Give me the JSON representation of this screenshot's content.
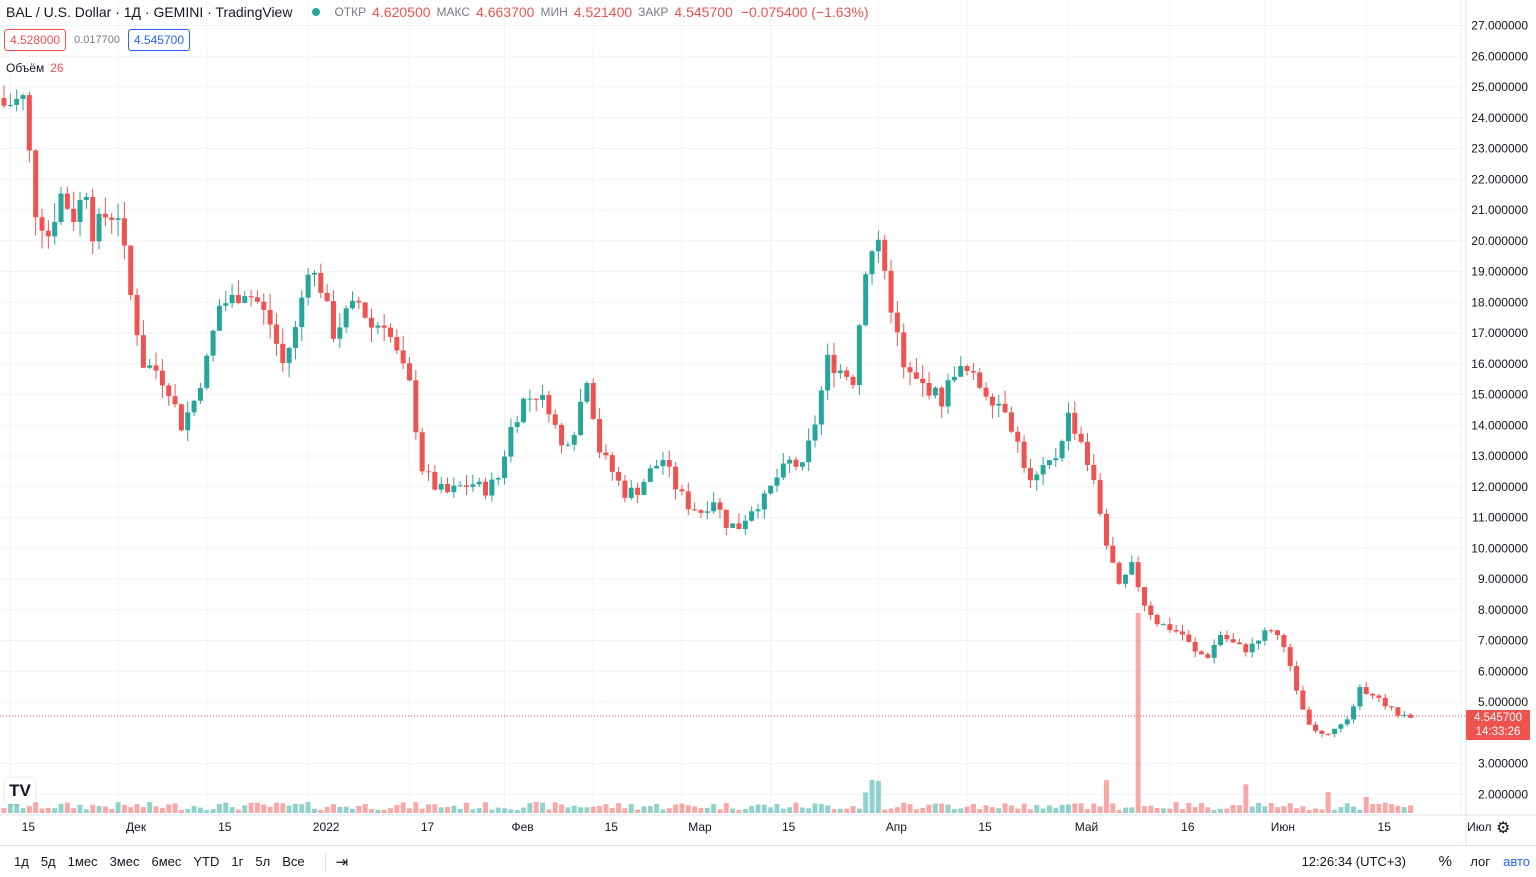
{
  "header": {
    "symbol": "BAL / U.S. Dollar · 1Д · GEMINI · TradingView",
    "open_label": "ОТКР",
    "open": "4.620500",
    "high_label": "МАКС",
    "high": "4.663700",
    "low_label": "МИН",
    "low": "4.521400",
    "close_label": "ЗАКР",
    "close": "4.545700",
    "change": "−0.075400 (−1.63%)"
  },
  "order_boxes": {
    "sell": "4.528000",
    "spread": "0.017700",
    "buy": "4.545700"
  },
  "volume_legend": {
    "label": "Объём",
    "value": "26"
  },
  "last_price": {
    "price": "4.545700",
    "countdown": "14:33:26"
  },
  "colors": {
    "up": "#26a69a",
    "down": "#ef5350",
    "grid": "#f0f3fa",
    "axis_text": "#131722"
  },
  "bottom_bar": {
    "ranges": [
      "1д",
      "5д",
      "1мес",
      "3мес",
      "6мес",
      "YTD",
      "1г",
      "5л",
      "Все"
    ],
    "clock": "12:26:34 (UTC+3)",
    "percent": "%",
    "log": "лог",
    "auto": "авто"
  },
  "icons": {
    "calendar": "calendar-goto-icon",
    "settings": "gear-icon",
    "logo": "tradingview-logo-icon"
  },
  "chart_data": {
    "type": "candlestick",
    "y_ticks": [
      "27.000000",
      "26.000000",
      "25.000000",
      "24.000000",
      "23.000000",
      "22.000000",
      "21.000000",
      "20.000000",
      "19.000000",
      "18.000000",
      "17.000000",
      "16.000000",
      "15.000000",
      "14.000000",
      "13.000000",
      "12.000000",
      "11.000000",
      "10.000000",
      "9.000000",
      "8.000000",
      "7.000000",
      "6.000000",
      "5.000000",
      "3.000000",
      "2.000000"
    ],
    "x_ticks": [
      "15",
      "Дек",
      "15",
      "2022",
      "17",
      "Фев",
      "15",
      "Мар",
      "15",
      "Апр",
      "15",
      "Май",
      "16",
      "Июн",
      "15",
      "Июл"
    ],
    "ylim": [
      1.5,
      27.2
    ],
    "start_date": "2021-11-14",
    "end_date": "2022-07-02",
    "anchors": [
      [
        0,
        24.4
      ],
      [
        3,
        24.6
      ],
      [
        5,
        21
      ],
      [
        7,
        20.2
      ],
      [
        9,
        21.5
      ],
      [
        11,
        20.8
      ],
      [
        13,
        21.7
      ],
      [
        14,
        20.3
      ],
      [
        16,
        20.8
      ],
      [
        18,
        20.9
      ],
      [
        20,
        18.2
      ],
      [
        22,
        16
      ],
      [
        24,
        15.8
      ],
      [
        26,
        15.2
      ],
      [
        28,
        14
      ],
      [
        30,
        14.8
      ],
      [
        32,
        16.1
      ],
      [
        34,
        17.9
      ],
      [
        36,
        18.1
      ],
      [
        38,
        18.4
      ],
      [
        40,
        18
      ],
      [
        42,
        17.3
      ],
      [
        44,
        16
      ],
      [
        46,
        17.1
      ],
      [
        48,
        19.2
      ],
      [
        50,
        18.5
      ],
      [
        52,
        17
      ],
      [
        54,
        17.6
      ],
      [
        56,
        18
      ],
      [
        58,
        17.2
      ],
      [
        60,
        17.4
      ],
      [
        62,
        16.3
      ],
      [
        64,
        15.3
      ],
      [
        66,
        12.6
      ],
      [
        68,
        12
      ],
      [
        70,
        11.8
      ],
      [
        72,
        12
      ],
      [
        74,
        12.1
      ],
      [
        76,
        11.9
      ],
      [
        78,
        12.3
      ],
      [
        80,
        13.9
      ],
      [
        82,
        14.8
      ],
      [
        84,
        15
      ],
      [
        86,
        14.6
      ],
      [
        88,
        13.3
      ],
      [
        90,
        13.9
      ],
      [
        92,
        15.6
      ],
      [
        94,
        13.2
      ],
      [
        96,
        12.5
      ],
      [
        98,
        11.8
      ],
      [
        100,
        11.9
      ],
      [
        102,
        12.5
      ],
      [
        104,
        12.9
      ],
      [
        106,
        12
      ],
      [
        108,
        11.4
      ],
      [
        110,
        11.2
      ],
      [
        112,
        11.6
      ],
      [
        114,
        10.8
      ],
      [
        116,
        10.7
      ],
      [
        118,
        11.3
      ],
      [
        120,
        11.6
      ],
      [
        122,
        12.3
      ],
      [
        124,
        12.8
      ],
      [
        126,
        12.6
      ],
      [
        128,
        14.1
      ],
      [
        130,
        16.1
      ],
      [
        132,
        15.8
      ],
      [
        134,
        15.5
      ],
      [
        136,
        19.2
      ],
      [
        138,
        20.1
      ],
      [
        140,
        17.9
      ],
      [
        142,
        15.8
      ],
      [
        144,
        15.4
      ],
      [
        146,
        15.2
      ],
      [
        148,
        14.8
      ],
      [
        150,
        15.8
      ],
      [
        152,
        15.7
      ],
      [
        154,
        15.3
      ],
      [
        156,
        14.9
      ],
      [
        158,
        14.6
      ],
      [
        160,
        13.4
      ],
      [
        162,
        12.1
      ],
      [
        164,
        12.5
      ],
      [
        166,
        13
      ],
      [
        168,
        14.3
      ],
      [
        170,
        13.5
      ],
      [
        172,
        12.1
      ],
      [
        174,
        10.2
      ],
      [
        176,
        8.7
      ],
      [
        178,
        9.4
      ],
      [
        180,
        8.2
      ],
      [
        182,
        7.6
      ],
      [
        184,
        7.4
      ],
      [
        186,
        7.2
      ],
      [
        188,
        6.6
      ],
      [
        190,
        6.5
      ],
      [
        192,
        7.2
      ],
      [
        194,
        6.9
      ],
      [
        196,
        6.7
      ],
      [
        198,
        7.1
      ],
      [
        200,
        7.4
      ],
      [
        202,
        6.9
      ],
      [
        204,
        5.3
      ],
      [
        206,
        4.2
      ],
      [
        208,
        3.9
      ],
      [
        210,
        4.1
      ],
      [
        212,
        4.4
      ],
      [
        214,
        5.4
      ],
      [
        216,
        5.3
      ],
      [
        218,
        4.9
      ],
      [
        220,
        4.6
      ],
      [
        222,
        4.55
      ]
    ],
    "volume_note": "volume bars colored by candle direction",
    "volume_spike_date": "2022-05-12"
  }
}
